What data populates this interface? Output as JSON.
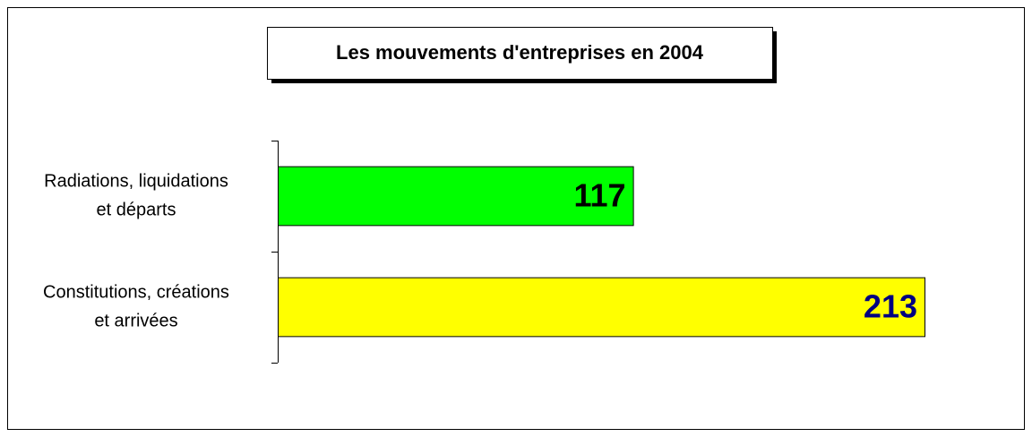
{
  "chart_data": {
    "type": "bar",
    "orientation": "horizontal",
    "title": "Les mouvements d'entreprises en 2004",
    "categories": [
      [
        "Radiations, liquidations",
        "et départs"
      ],
      [
        "Constitutions, créations",
        "et arrivées"
      ]
    ],
    "values": [
      117,
      213
    ],
    "colors": [
      "#00ff00",
      "#ffff00"
    ],
    "label_colors": [
      "#000000",
      "#000080"
    ]
  }
}
